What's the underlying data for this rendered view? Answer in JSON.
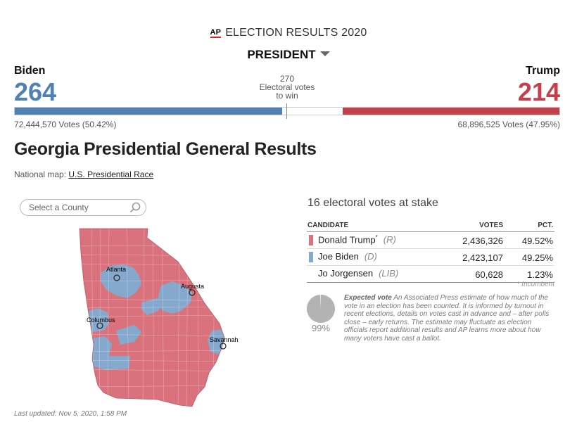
{
  "header": {
    "ap_logo": "AP",
    "title": "ELECTION RESULTS 2020",
    "race_selector": "PRESIDENT"
  },
  "scoreboard": {
    "left": {
      "name": "Biden",
      "electoral_votes": "264",
      "votes": "72,444,570 Votes (50.42%)",
      "color": "#4f82b3"
    },
    "right": {
      "name": "Trump",
      "electoral_votes": "214",
      "votes": "68,896,525 Votes (47.95%)",
      "color": "#c4414b"
    },
    "to_win": {
      "number": "270",
      "line1": "Electoral votes",
      "line2": "to win"
    },
    "bar": {
      "dem_electoral": 264,
      "rep_electoral": 214,
      "total_electoral": 538,
      "threshold": 270
    }
  },
  "page": {
    "title": "Georgia Presidential General Results",
    "national_map_label": "National map:",
    "national_map_link": "U.S. Presidential Race"
  },
  "search": {
    "placeholder": "Select a County"
  },
  "map": {
    "cities": [
      "Atlanta",
      "Augusta",
      "Columbus",
      "Savannah"
    ],
    "colors": {
      "rep": "#d9727d",
      "dem": "#84a9cd"
    }
  },
  "results": {
    "stake": "16 electoral votes at stake",
    "columns": {
      "candidate": "CANDIDATE",
      "votes": "VOTES",
      "pct": "PCT."
    },
    "rows": [
      {
        "name": "Donald Trump",
        "marker": "*",
        "party": "(R)",
        "votes": "2,436,326",
        "pct": "49.52%",
        "color": "#d9727d"
      },
      {
        "name": "Joe Biden",
        "marker": "",
        "party": "(D)",
        "votes": "2,423,107",
        "pct": "49.25%",
        "color": "#84a9cd"
      },
      {
        "name": "Jo Jorgensen",
        "marker": "",
        "party": "(LIB)",
        "votes": "60,628",
        "pct": "1.23%",
        "color": ""
      }
    ],
    "incumbent_note": "* Incumbent"
  },
  "expected_vote": {
    "percent_label": "99%",
    "percent": 99,
    "heading": "Expected vote",
    "text": "An Associated Press estimate of how much of the vote in an election has been counted. It is informed by turnout in recent elections, details on votes cast in advance and – after polls close – early returns. The estimate may fluctuate as election officials report additional results and AP learns more about how many voters have cast a ballot."
  },
  "footer": {
    "last_updated": "Last updated: Nov 5, 2020, 1:58 PM"
  }
}
